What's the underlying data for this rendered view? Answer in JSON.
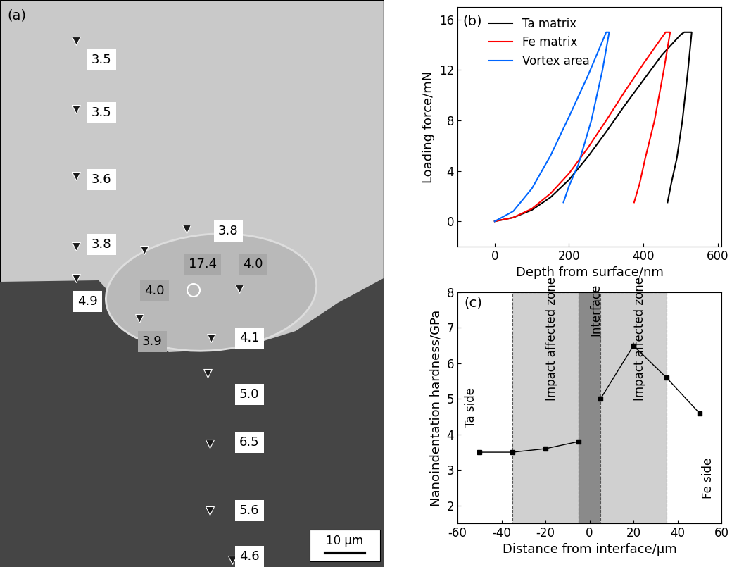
{
  "chart_data": [
    {
      "type": "micrograph",
      "panel_label": "(a)",
      "annotations": [
        "3.5",
        "3.5",
        "3.6",
        "3.8",
        "3.8",
        "4.9",
        "4.0",
        "17.4",
        "4.0",
        "3.9",
        "4.1",
        "5.0",
        "6.5",
        "5.6",
        "4.6"
      ],
      "scale_bar": "10 μm"
    },
    {
      "type": "line",
      "panel_label": "(b)",
      "x_label": "Depth from surface/nm",
      "y_label": "Loading force/mN",
      "xlim": [
        -100,
        610
      ],
      "ylim": [
        -2,
        17
      ],
      "xticks": [
        0,
        200,
        400,
        600
      ],
      "yticks": [
        0,
        4,
        8,
        12,
        16
      ],
      "legend": "upper left",
      "series": [
        {
          "name": "Ta matrix",
          "color": "#000000",
          "x": [
            0,
            50,
            100,
            150,
            200,
            250,
            300,
            350,
            400,
            450,
            500,
            510,
            530,
            520,
            505,
            490,
            475,
            465
          ],
          "values": [
            0,
            0.3,
            0.9,
            1.9,
            3.3,
            5.1,
            7.1,
            9.2,
            11.2,
            13.2,
            14.8,
            15,
            15,
            12,
            8,
            5,
            3,
            1.5
          ]
        },
        {
          "name": "Fe matrix",
          "color": "#ff0000",
          "x": [
            0,
            50,
            100,
            150,
            200,
            250,
            300,
            350,
            400,
            450,
            460,
            472,
            455,
            430,
            405,
            390,
            375
          ],
          "values": [
            0,
            0.3,
            1.0,
            2.2,
            3.8,
            5.8,
            8.0,
            10.3,
            12.5,
            14.6,
            15,
            15,
            12,
            8,
            5,
            3,
            1.5
          ]
        },
        {
          "name": "Vortex area",
          "color": "#0066ff",
          "x": [
            0,
            50,
            100,
            150,
            200,
            250,
            300,
            308,
            290,
            260,
            225,
            200,
            185
          ],
          "values": [
            0,
            0.8,
            2.6,
            5.2,
            8.3,
            11.5,
            15,
            15,
            12,
            8,
            4.5,
            2.8,
            1.5
          ]
        }
      ]
    },
    {
      "type": "line",
      "panel_label": "(c)",
      "x_label": "Distance from interface/μm",
      "y_label": "Nanoindentation hardness/GPa",
      "xlim": [
        -60,
        60
      ],
      "ylim": [
        1.5,
        8
      ],
      "xticks": [
        -60,
        -40,
        -20,
        0,
        20,
        40,
        60
      ],
      "yticks": [
        2,
        3,
        4,
        5,
        6,
        7,
        8
      ],
      "regions": [
        {
          "label": "Impact affected zone",
          "x0": -35,
          "x1": -5
        },
        {
          "label": "Interface",
          "x0": -5,
          "x1": 5
        },
        {
          "label": "Impact affected zone",
          "x0": 5,
          "x1": 35
        }
      ],
      "side_labels": [
        "Ta side",
        "Fe side"
      ],
      "series": [
        {
          "color": "#000000",
          "marker": "s",
          "x": [
            -50,
            -35,
            -20,
            -5
          ],
          "values": [
            3.5,
            3.5,
            3.6,
            3.8
          ]
        },
        {
          "color": "#000000",
          "marker": "s",
          "x": [
            5,
            20,
            35,
            50
          ],
          "values": [
            5.0,
            6.5,
            5.6,
            4.6
          ]
        }
      ]
    }
  ]
}
